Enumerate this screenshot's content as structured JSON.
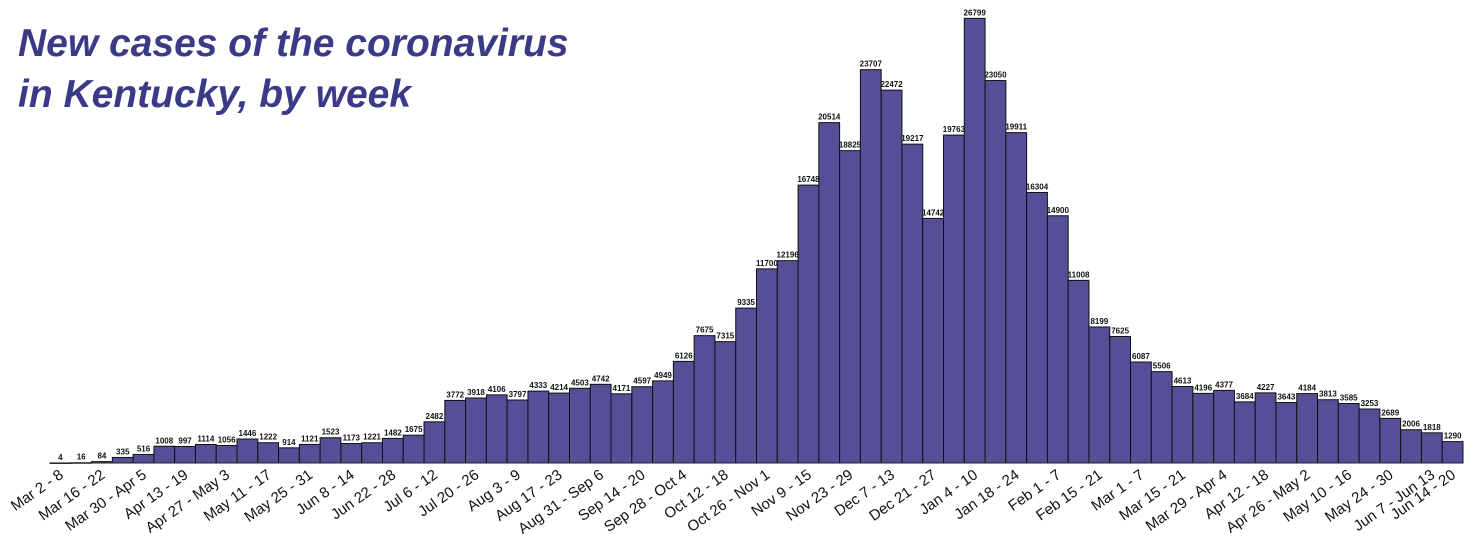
{
  "chart_data": {
    "type": "bar",
    "title_lines": [
      "New cases of the coronavirus",
      "in Kentucky, by week"
    ],
    "xlabel": "",
    "ylabel": "",
    "ylim": [
      0,
      27000
    ],
    "grid": false,
    "legend": "none",
    "colors": {
      "bar": "#544f97",
      "edge": "#111111",
      "title": "#3b3a87"
    },
    "categories": [
      "Mar 2 - 8",
      "",
      "Mar 16 - 22",
      "",
      "Mar 30 - Apr 5",
      "",
      "Apr 13 - 19",
      "",
      "Apr 27 - May 3",
      "",
      "May 11 - 17",
      "",
      "May 25 - 31",
      "",
      "Jun 8 - 14",
      "",
      "Jun 22 - 28",
      "",
      "Jul  6 - 12",
      "",
      "Jul 20 - 26",
      "",
      "Aug 3 - 9",
      "",
      "Aug 17 - 23",
      "",
      "Aug 31 - Sep 6",
      "",
      "Sep 14 - 20",
      "",
      "Sep 28 - Oct 4",
      "",
      "Oct 12 - 18",
      "",
      "Oct 26 - Nov 1",
      "",
      "Nov 9 - 15",
      "",
      "Nov 23 - 29",
      "",
      "Dec 7 - 13",
      "",
      "Dec 21 - 27",
      "",
      "Jan 4 - 10",
      "",
      "Jan 18 - 24",
      "",
      "Feb 1 - 7",
      "",
      "Feb 15 - 21",
      "",
      "Mar 1 - 7",
      "",
      "Mar 15 - 21",
      "",
      "Mar 29 - Apr 4",
      "",
      "Apr 12 - 18",
      "",
      "Apr 26 - May 2",
      "",
      "May 10 - 16",
      "",
      "May 24 - 30",
      "",
      "Jun 7 - Jun 13",
      "Jun 14 - 20"
    ],
    "values": [
      4,
      16,
      84,
      335,
      516,
      1008,
      997,
      1114,
      1056,
      1446,
      1222,
      914,
      1121,
      1523,
      1173,
      1221,
      1482,
      1675,
      2482,
      3772,
      3918,
      4106,
      3797,
      4333,
      4214,
      4503,
      4742,
      4171,
      4597,
      4949,
      6126,
      7675,
      7315,
      9335,
      11700,
      12196,
      16748,
      20514,
      18825,
      23707,
      22472,
      19217,
      14742,
      19763,
      26799,
      23050,
      19911,
      16304,
      14900,
      11008,
      8199,
      7625,
      6087,
      5506,
      4613,
      4196,
      4377,
      3684,
      4227,
      3643,
      4184,
      3813,
      3585,
      3253,
      2689,
      2006,
      1818,
      1290
    ],
    "value_labels": [
      "4",
      "16",
      "84",
      "335",
      "516",
      "1008",
      "997",
      "1114",
      "1056",
      "1446",
      "1222",
      "914",
      "1121",
      "1523",
      "1173",
      "1221",
      "1482",
      "1675",
      "2482",
      "3772",
      "3918",
      "4106",
      "3797",
      "4333",
      "4214",
      "4503",
      "4742",
      "4171",
      "4597",
      "4949",
      "6126",
      "7675",
      "7315",
      "9335",
      "11700",
      "12196",
      "16748",
      "20514",
      "18825",
      "23707",
      "22472",
      "19217",
      "14742",
      "19763",
      "26799",
      "23050",
      "19911",
      "16304",
      "14900",
      "11008",
      "8199",
      "7625",
      "6087",
      "5506",
      "4613",
      "4196",
      "4377",
      "3684",
      "4227",
      "3643",
      "4184",
      "3813",
      "3585",
      "3253",
      "2689",
      "2006",
      "1818",
      "1290"
    ]
  }
}
